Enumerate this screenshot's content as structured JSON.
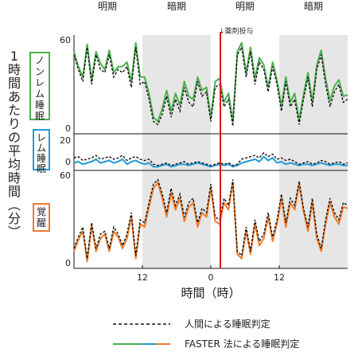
{
  "chart_data": {
    "type": "line",
    "phase_labels": [
      "明期",
      "暗期",
      "明期",
      "暗期"
    ],
    "drug_label": "↓薬剤投与",
    "ylabel": "1時間あたりの平均時間（分）",
    "xlabel": "時間（時）",
    "x_ticks": [
      "12",
      "0",
      "12"
    ],
    "colors": {
      "nonrem": "#4caf50",
      "rem": "#1e9ad6",
      "wake": "#f07a2a",
      "human": "#111111",
      "drug_line": "#d7191c",
      "dark_phase": "#e6e6e6"
    },
    "panels": [
      {
        "name": "ノンレム睡眠",
        "y_ticks": [
          "60",
          "0"
        ],
        "ylim": [
          0,
          60
        ],
        "series": [
          {
            "name": "人間による睡眠判定",
            "values": [
              50,
              40,
              32,
              55,
              30,
              50,
              40,
              38,
              50,
              35,
              40,
              38,
              42,
              28,
              55,
              30,
              32,
              20,
              5,
              3,
              10,
              22,
              8,
              20,
              12,
              28,
              18,
              15,
              32,
              22,
              25,
              5,
              28,
              30,
              15,
              20,
              2,
              50,
              55,
              35,
              52,
              30,
              45,
              40,
              25,
              42,
              30,
              12,
              32,
              15,
              20,
              3,
              20,
              35,
              15,
              40,
              50,
              30,
              15,
              25,
              30,
              18,
              20
            ]
          },
          {
            "name": "FASTER 法による睡眠判定",
            "values": [
              52,
              42,
              35,
              57,
              33,
              52,
              44,
              40,
              53,
              38,
              42,
              42,
              45,
              32,
              58,
              35,
              35,
              24,
              8,
              5,
              14,
              26,
              12,
              24,
              16,
              32,
              22,
              20,
              35,
              26,
              28,
              8,
              32,
              34,
              18,
              24,
              5,
              52,
              58,
              38,
              55,
              34,
              48,
              43,
              28,
              45,
              33,
              15,
              35,
              18,
              24,
              6,
              23,
              38,
              18,
              43,
              53,
              34,
              19,
              29,
              33,
              22,
              23
            ]
          }
        ]
      },
      {
        "name": "レム睡眠",
        "y_ticks": [
          "20",
          "0"
        ],
        "ylim": [
          0,
          22
        ],
        "series": [
          {
            "name": "人間による睡眠判定",
            "values": [
              8,
              9,
              6,
              7,
              8,
              10,
              7,
              8,
              9,
              7,
              8,
              10,
              6,
              8,
              9,
              7,
              6,
              7,
              3,
              2,
              3,
              4,
              2,
              3,
              4,
              5,
              3,
              4,
              5,
              4,
              3,
              2,
              3,
              4,
              3,
              4,
              2,
              3,
              7,
              8,
              9,
              10,
              8,
              12,
              9,
              11,
              7,
              8,
              6,
              7,
              5,
              3,
              4,
              5,
              3,
              4,
              6,
              5,
              3,
              4,
              5,
              3,
              4
            ]
          },
          {
            "name": "FASTER 法による睡眠判定",
            "values": [
              4,
              5,
              3,
              4,
              5,
              7,
              4,
              5,
              6,
              4,
              5,
              7,
              3,
              5,
              6,
              4,
              3,
              4,
              1,
              1,
              2,
              3,
              1,
              2,
              3,
              3,
              2,
              3,
              4,
              3,
              2,
              1,
              2,
              3,
              2,
              3,
              1,
              2,
              4,
              5,
              6,
              7,
              5,
              9,
              6,
              8,
              4,
              5,
              3,
              4,
              3,
              2,
              3,
              3,
              2,
              3,
              4,
              3,
              2,
              3,
              3,
              2,
              2
            ]
          }
        ]
      },
      {
        "name": "覚醒",
        "y_ticks": [
          "60",
          "0"
        ],
        "ylim": [
          0,
          60
        ],
        "series": [
          {
            "name": "人間による睡眠判定",
            "values": [
              10,
              18,
              25,
              3,
              28,
              10,
              20,
              22,
              10,
              25,
              20,
              12,
              20,
              35,
              5,
              30,
              28,
              42,
              55,
              58,
              48,
              35,
              52,
              40,
              48,
              32,
              42,
              45,
              28,
              38,
              35,
              55,
              32,
              30,
              45,
              40,
              58,
              8,
              5,
              25,
              8,
              30,
              15,
              20,
              35,
              18,
              30,
              48,
              28,
              45,
              40,
              57,
              38,
              25,
              45,
              20,
              10,
              30,
              45,
              35,
              30,
              42,
              40
            ]
          },
          {
            "name": "FASTER 法による睡眠判定",
            "values": [
              8,
              16,
              22,
              1,
              26,
              8,
              17,
              20,
              8,
              22,
              18,
              10,
              17,
              32,
              3,
              27,
              25,
              39,
              52,
              56,
              45,
              32,
              49,
              37,
              45,
              29,
              39,
              42,
              25,
              35,
              32,
              52,
              29,
              27,
              42,
              37,
              56,
              6,
              3,
              22,
              6,
              27,
              12,
              17,
              32,
              15,
              27,
              45,
              25,
              42,
              37,
              55,
              36,
              22,
              42,
              17,
              8,
              27,
              42,
              32,
              27,
              39,
              38
            ]
          }
        ]
      }
    ],
    "legend": [
      {
        "label": "人間による睡眠判定"
      },
      {
        "label": "FASTER 法による睡眠判定"
      }
    ]
  }
}
